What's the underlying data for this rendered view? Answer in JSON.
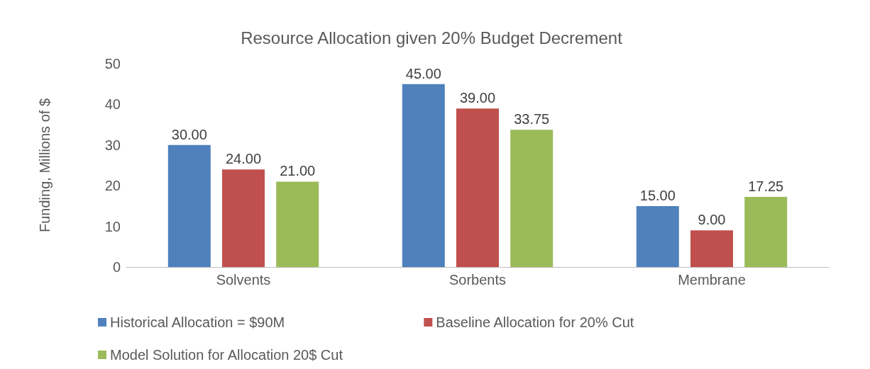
{
  "chart_data": {
    "type": "bar",
    "title": "Resource Allocation given 20% Budget Decrement",
    "ylabel": "Funding, Millions of $",
    "categories": [
      "Solvents",
      "Sorbents",
      "Membrane"
    ],
    "series": [
      {
        "name": "Historical Allocation = $90M",
        "color": "#4f81bd",
        "values": [
          30,
          45,
          15
        ],
        "value_labels": [
          "30.00",
          "45.00",
          "15.00"
        ]
      },
      {
        "name": "Baseline Allocation for 20% Cut",
        "color": "#c0504d",
        "values": [
          24,
          39,
          9
        ],
        "value_labels": [
          "24.00",
          "39.00",
          "9.00"
        ]
      },
      {
        "name": "Model Solution for Allocation 20$ Cut",
        "color": "#9bbb59",
        "values": [
          21,
          33.75,
          17.25
        ],
        "value_labels": [
          "21.00",
          "33.75",
          "17.25"
        ]
      }
    ],
    "ylim": [
      0,
      50
    ],
    "yticks": [
      0,
      10,
      20,
      30,
      40,
      50
    ],
    "grid": false,
    "legend": "bottom"
  }
}
